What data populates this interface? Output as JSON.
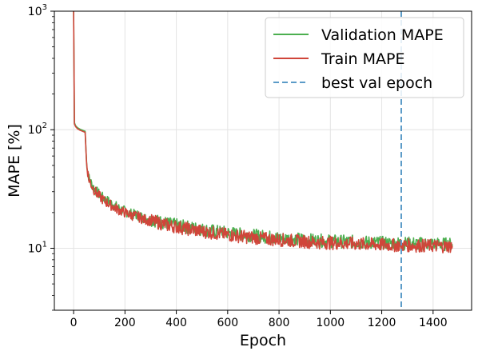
{
  "chart_data": {
    "type": "line",
    "title": "",
    "xlabel": "Epoch",
    "ylabel": "MAPE [%]",
    "yscale": "log",
    "xlim": [
      -75,
      1550
    ],
    "ylim": [
      3,
      1000
    ],
    "xticks": [
      0,
      200,
      400,
      600,
      800,
      1000,
      1200,
      1400
    ],
    "xtick_labels": [
      "0",
      "200",
      "400",
      "600",
      "800",
      "1000",
      "1200",
      "1400"
    ],
    "yticks": [
      10,
      100,
      1000
    ],
    "ytick_labels": [
      {
        "base": "10",
        "exp": "1"
      },
      {
        "base": "10",
        "exp": "2"
      },
      {
        "base": "10",
        "exp": "3"
      }
    ],
    "grid": true,
    "legend_position": "top-right",
    "best_val_epoch": 1276,
    "series": [
      {
        "name": "Validation MAPE",
        "color": "#4caf50",
        "x": [
          0,
          3,
          8,
          15,
          25,
          35,
          45,
          50,
          55,
          60,
          70,
          80,
          90,
          100,
          120,
          140,
          160,
          180,
          200,
          225,
          250,
          275,
          300,
          325,
          350,
          375,
          400,
          425,
          450,
          475,
          500,
          550,
          600,
          650,
          700,
          750,
          800,
          850,
          900,
          950,
          1000,
          1050,
          1100,
          1150,
          1200,
          1250,
          1300,
          1350,
          1400,
          1450,
          1475
        ],
        "y": [
          1000,
          115,
          108,
          104,
          101,
          99,
          97,
          55,
          45,
          39,
          35,
          32,
          30,
          28.5,
          26,
          24.5,
          23,
          21.5,
          20.5,
          19.5,
          19,
          18,
          17.5,
          17,
          16.5,
          16,
          15.7,
          15.3,
          15,
          14.7,
          14.4,
          13.9,
          13.5,
          13.1,
          12.8,
          12.5,
          12.2,
          12,
          11.8,
          11.6,
          11.5,
          11.4,
          11.3,
          11.2,
          11.1,
          11,
          11,
          10.9,
          10.9,
          10.8,
          10.8
        ]
      },
      {
        "name": "Train MAPE",
        "color": "#d0453a",
        "x": [
          0,
          3,
          8,
          15,
          25,
          35,
          45,
          50,
          55,
          60,
          70,
          80,
          90,
          100,
          120,
          140,
          160,
          180,
          200,
          225,
          250,
          275,
          300,
          325,
          350,
          375,
          400,
          425,
          450,
          475,
          500,
          550,
          600,
          650,
          700,
          750,
          800,
          850,
          900,
          950,
          1000,
          1050,
          1100,
          1150,
          1200,
          1250,
          1300,
          1350,
          1400,
          1450,
          1475
        ],
        "y": [
          1000,
          112,
          106,
          102,
          99,
          97,
          95,
          53,
          44,
          38,
          34,
          31,
          29,
          27.5,
          25,
          23.5,
          22,
          20.8,
          20,
          19,
          18.5,
          17.5,
          17,
          16.5,
          16,
          15.5,
          15.2,
          14.8,
          14.5,
          14.2,
          13.9,
          13.4,
          13,
          12.6,
          12.3,
          12,
          11.8,
          11.6,
          11.4,
          11.2,
          11.1,
          11,
          10.9,
          10.8,
          10.7,
          10.6,
          10.6,
          10.5,
          10.5,
          10.4,
          10.4
        ]
      }
    ],
    "legend": [
      {
        "label": "Validation MAPE",
        "style": "solid",
        "color": "#4caf50"
      },
      {
        "label": "Train MAPE",
        "style": "solid",
        "color": "#d0453a"
      },
      {
        "label": "best val epoch",
        "style": "dashed",
        "color": "#5b9bc8"
      }
    ]
  }
}
